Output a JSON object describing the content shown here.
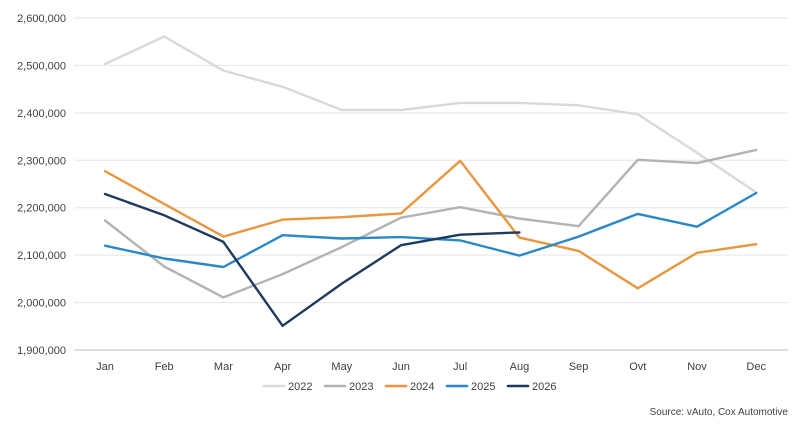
{
  "chart_data": {
    "type": "line",
    "title": "",
    "xlabel": "",
    "ylabel": "",
    "categories": [
      "Jan",
      "Feb",
      "Mar",
      "Apr",
      "May",
      "Jun",
      "Jul",
      "Aug",
      "Sep",
      "Ovt",
      "Nov",
      "Dec"
    ],
    "y_ticks": [
      "1,900,000",
      "2,000,000",
      "2,100,000",
      "2,200,000",
      "2,300,000",
      "2,400,000",
      "2,500,000",
      "2,600,000"
    ],
    "ylim": [
      1900000,
      2600000
    ],
    "grid": "horizontal",
    "legend_position": "bottom",
    "series": [
      {
        "name": "2022",
        "color": "#d9d9d9",
        "values": [
          2503000,
          2561000,
          2489000,
          2455000,
          2406000,
          2406000,
          2421000,
          2421000,
          2416000,
          2397000,
          2316000,
          2232000
        ]
      },
      {
        "name": "2023",
        "color": "#b3b3b3",
        "values": [
          2173000,
          2076000,
          2011000,
          2060000,
          2117000,
          2179000,
          2201000,
          2177000,
          2161000,
          2301000,
          2294000,
          2322000
        ]
      },
      {
        "name": "2024",
        "color": "#e8963f",
        "values": [
          2277000,
          2208000,
          2139000,
          2175000,
          2180000,
          2188000,
          2299000,
          2137000,
          2109000,
          2030000,
          2105000,
          2123000
        ]
      },
      {
        "name": "2025",
        "color": "#2a88c8",
        "values": [
          2120000,
          2093000,
          2075000,
          2142000,
          2135000,
          2138000,
          2131000,
          2099000,
          2139000,
          2187000,
          2160000,
          2231000
        ]
      },
      {
        "name": "2026",
        "color": "#1f3a5f",
        "values": [
          2229000,
          2184000,
          2128000,
          1951000,
          2040000,
          2121000,
          2143000,
          2148000,
          null,
          null,
          null,
          null
        ]
      }
    ],
    "source": "Source: vAuto, Cox Automotive"
  }
}
